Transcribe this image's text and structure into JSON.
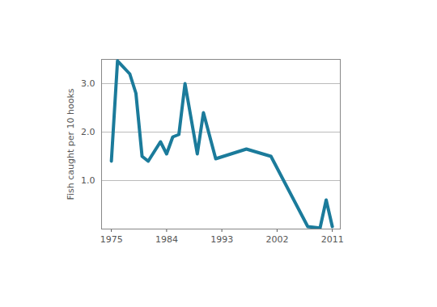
{
  "chart_data": {
    "type": "line",
    "y_label": "Fish caught per 10 hooks",
    "x": [
      1975,
      1976,
      1978,
      1979,
      1980,
      1981,
      1983,
      1984,
      1985,
      1986,
      1987,
      1989,
      1990,
      1992,
      1997,
      2001,
      2007,
      2009,
      2010,
      2011
    ],
    "values": [
      1.4,
      3.47,
      3.2,
      2.8,
      1.5,
      1.4,
      1.8,
      1.55,
      1.9,
      1.95,
      3.0,
      1.55,
      2.4,
      1.45,
      1.65,
      1.5,
      0.05,
      0.02,
      0.6,
      0.05
    ],
    "color": "#1b7b9b",
    "xlim": [
      1973.4,
      2012.3
    ],
    "ylim": [
      0,
      3.5
    ],
    "xticks": [
      1975,
      1984,
      1993,
      2002,
      2011
    ],
    "yticks": [
      {
        "value": 1,
        "label": "1.0"
      },
      {
        "value": 2,
        "label": "2.0"
      },
      {
        "value": 3,
        "label": "3.0"
      }
    ],
    "grid": true
  }
}
